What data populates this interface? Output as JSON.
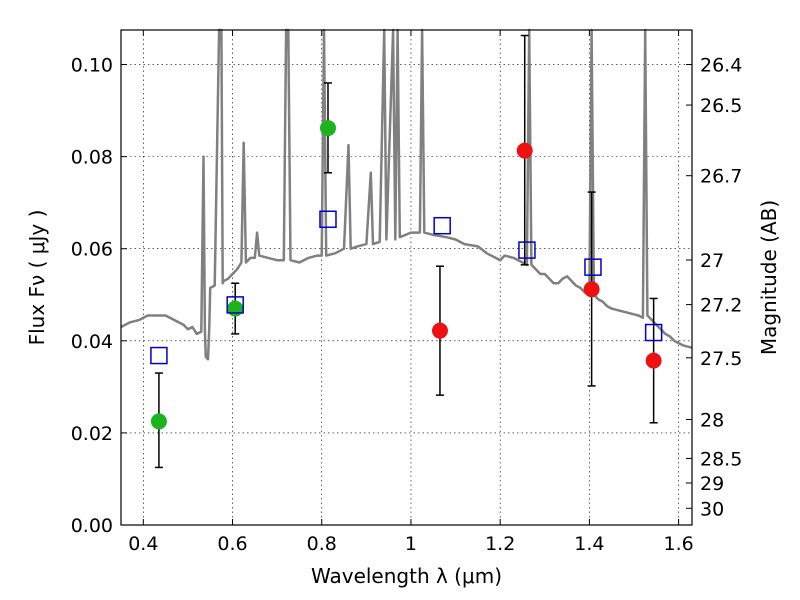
{
  "chart_data": {
    "type": "scatter",
    "xlabel": "Wavelength  λ (μm)",
    "ylabel": "Flux  Fν  ( μJy )",
    "ylabel2": "Magnitude (AB)",
    "xlim": [
      0.35,
      1.63
    ],
    "ylim": [
      0.0,
      0.1075
    ],
    "grid": true,
    "x_ticks": [
      0.4,
      0.6,
      0.8,
      1.0,
      1.2,
      1.4,
      1.6
    ],
    "x_tick_labels": [
      "0.4",
      "0.6",
      "0.8",
      "1",
      "1.2",
      "1.4",
      "1.6"
    ],
    "y_ticks": [
      0.0,
      0.02,
      0.04,
      0.06,
      0.08,
      0.1
    ],
    "y_tick_labels": [
      "0.00",
      "0.02",
      "0.04",
      "0.06",
      "0.08",
      "0.10"
    ],
    "mag_ticks": [
      26.4,
      26.5,
      26.7,
      27,
      27.2,
      27.5,
      28,
      28.5,
      29,
      30
    ],
    "mag_tick_labels": [
      "26.4",
      "26.5",
      "26.7",
      "27",
      "27.2",
      "27.5",
      "28",
      "28.5",
      "29",
      "30"
    ],
    "series": [
      {
        "marker": "circle",
        "color": "#1db31d",
        "points": [
          {
            "x": 0.435,
            "y": 0.0225,
            "err_low": 0.0125,
            "err_high": 0.033
          },
          {
            "x": 0.606,
            "y": 0.047,
            "err_low": 0.0415,
            "err_high": 0.0525
          },
          {
            "x": 0.814,
            "y": 0.0862,
            "err_low": 0.0765,
            "err_high": 0.096
          }
        ]
      },
      {
        "marker": "circle",
        "color": "#ee1111",
        "points": [
          {
            "x": 1.065,
            "y": 0.0422,
            "err_low": 0.0282,
            "err_high": 0.0562
          },
          {
            "x": 1.255,
            "y": 0.0813,
            "err_low": 0.0565,
            "err_high": 0.1063
          },
          {
            "x": 1.405,
            "y": 0.0512,
            "err_low": 0.0302,
            "err_high": 0.0723
          },
          {
            "x": 1.544,
            "y": 0.0357,
            "err_low": 0.0222,
            "err_high": 0.0492
          }
        ]
      },
      {
        "marker": "open-square",
        "color": "#0000cc",
        "points": [
          {
            "x": 0.435,
            "y": 0.0368
          },
          {
            "x": 0.606,
            "y": 0.0478
          },
          {
            "x": 0.814,
            "y": 0.0664
          },
          {
            "x": 1.07,
            "y": 0.065
          },
          {
            "x": 1.26,
            "y": 0.0597
          },
          {
            "x": 1.408,
            "y": 0.056
          },
          {
            "x": 1.544,
            "y": 0.0418
          }
        ]
      }
    ],
    "model_spectrum": {
      "color": "#808080",
      "points": [
        [
          0.35,
          0.043
        ],
        [
          0.37,
          0.044
        ],
        [
          0.39,
          0.0445
        ],
        [
          0.41,
          0.0455
        ],
        [
          0.43,
          0.0455
        ],
        [
          0.45,
          0.0455
        ],
        [
          0.47,
          0.0445
        ],
        [
          0.49,
          0.0435
        ],
        [
          0.5,
          0.0425
        ],
        [
          0.51,
          0.043
        ],
        [
          0.52,
          0.0415
        ],
        [
          0.53,
          0.042
        ],
        [
          0.535,
          0.08
        ],
        [
          0.538,
          0.042
        ],
        [
          0.54,
          0.0365
        ],
        [
          0.545,
          0.036
        ],
        [
          0.548,
          0.043
        ],
        [
          0.55,
          0.0515
        ],
        [
          0.56,
          0.052
        ],
        [
          0.57,
          0.1075
        ],
        [
          0.575,
          0.1075
        ],
        [
          0.578,
          0.0525
        ],
        [
          0.58,
          0.053
        ],
        [
          0.59,
          0.0535
        ],
        [
          0.6,
          0.0545
        ],
        [
          0.61,
          0.0555
        ],
        [
          0.62,
          0.057
        ],
        [
          0.625,
          0.083
        ],
        [
          0.63,
          0.057
        ],
        [
          0.64,
          0.058
        ],
        [
          0.65,
          0.058
        ],
        [
          0.655,
          0.0635
        ],
        [
          0.66,
          0.0585
        ],
        [
          0.68,
          0.058
        ],
        [
          0.7,
          0.0575
        ],
        [
          0.715,
          0.0575
        ],
        [
          0.72,
          0.1075
        ],
        [
          0.725,
          0.1075
        ],
        [
          0.73,
          0.0575
        ],
        [
          0.75,
          0.057
        ],
        [
          0.77,
          0.058
        ],
        [
          0.79,
          0.0585
        ],
        [
          0.8,
          0.0585
        ],
        [
          0.805,
          0.1075
        ],
        [
          0.81,
          0.0585
        ],
        [
          0.83,
          0.059
        ],
        [
          0.85,
          0.06
        ],
        [
          0.86,
          0.0825
        ],
        [
          0.865,
          0.06
        ],
        [
          0.88,
          0.0605
        ],
        [
          0.9,
          0.061
        ],
        [
          0.91,
          0.0765
        ],
        [
          0.915,
          0.061
        ],
        [
          0.93,
          0.0615
        ],
        [
          0.94,
          0.1075
        ],
        [
          0.945,
          0.062
        ],
        [
          0.96,
          0.1075
        ],
        [
          0.965,
          0.062
        ],
        [
          0.97,
          0.1075
        ],
        [
          0.975,
          0.0625
        ],
        [
          1.0,
          0.0635
        ],
        [
          1.02,
          0.0635
        ],
        [
          1.025,
          0.1075
        ],
        [
          1.03,
          0.0635
        ],
        [
          1.05,
          0.063
        ],
        [
          1.08,
          0.0625
        ],
        [
          1.1,
          0.062
        ],
        [
          1.12,
          0.061
        ],
        [
          1.15,
          0.0605
        ],
        [
          1.17,
          0.059
        ],
        [
          1.19,
          0.058
        ],
        [
          1.2,
          0.0575
        ],
        [
          1.21,
          0.0585
        ],
        [
          1.23,
          0.058
        ],
        [
          1.25,
          0.057
        ],
        [
          1.26,
          0.0565
        ],
        [
          1.265,
          0.1075
        ],
        [
          1.27,
          0.0565
        ],
        [
          1.28,
          0.0555
        ],
        [
          1.29,
          0.0545
        ],
        [
          1.3,
          0.0545
        ],
        [
          1.31,
          0.0535
        ],
        [
          1.32,
          0.0525
        ],
        [
          1.33,
          0.0525
        ],
        [
          1.34,
          0.0535
        ],
        [
          1.35,
          0.054
        ],
        [
          1.36,
          0.053
        ],
        [
          1.37,
          0.052
        ],
        [
          1.38,
          0.0515
        ],
        [
          1.39,
          0.0505
        ],
        [
          1.4,
          0.05
        ],
        [
          1.405,
          0.1075
        ],
        [
          1.41,
          0.05
        ],
        [
          1.42,
          0.049
        ],
        [
          1.43,
          0.0485
        ],
        [
          1.44,
          0.0475
        ],
        [
          1.45,
          0.047
        ],
        [
          1.47,
          0.0465
        ],
        [
          1.49,
          0.046
        ],
        [
          1.51,
          0.0455
        ],
        [
          1.52,
          0.045
        ],
        [
          1.525,
          0.1075
        ],
        [
          1.53,
          0.0455
        ],
        [
          1.54,
          0.0445
        ],
        [
          1.55,
          0.0435
        ],
        [
          1.56,
          0.0425
        ],
        [
          1.57,
          0.0415
        ],
        [
          1.58,
          0.041
        ],
        [
          1.59,
          0.04
        ],
        [
          1.6,
          0.0395
        ],
        [
          1.61,
          0.039
        ],
        [
          1.63,
          0.0385
        ]
      ]
    }
  }
}
